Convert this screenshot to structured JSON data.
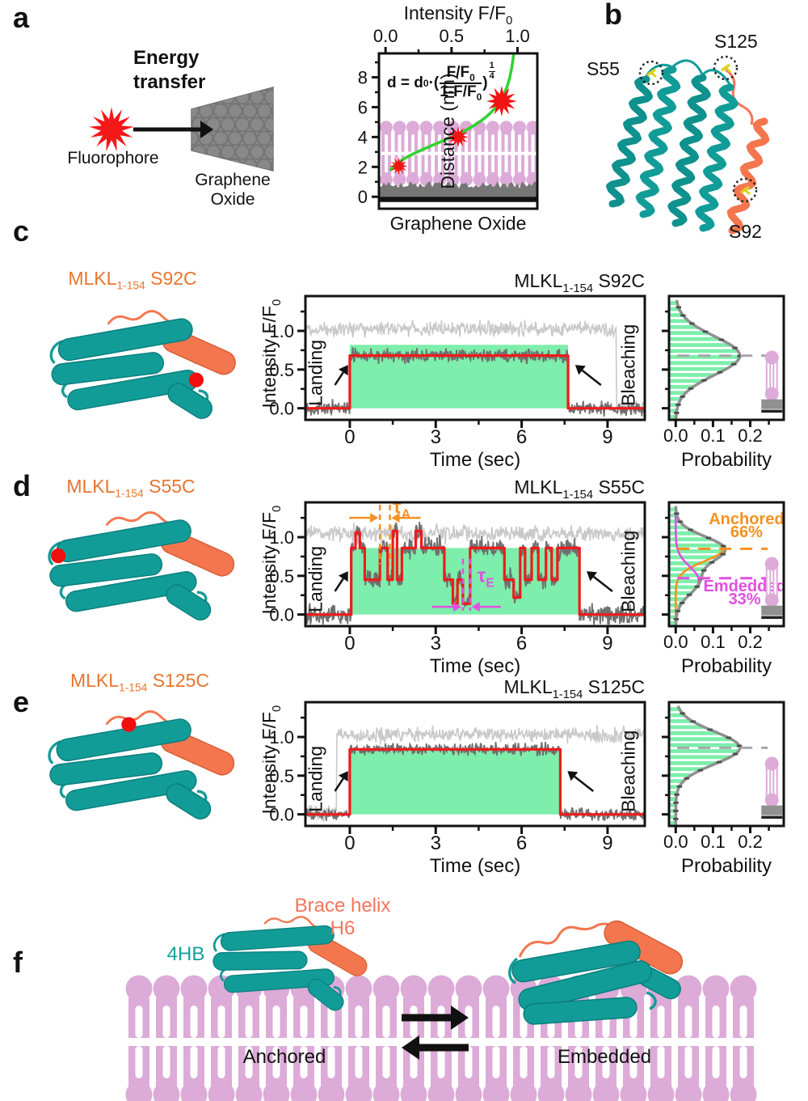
{
  "panel_letters": {
    "a": "a",
    "b": "b",
    "c": "c",
    "d": "d",
    "e": "e",
    "f": "f"
  },
  "panel_a": {
    "energy_line1": "Energy",
    "energy_line2": "transfer",
    "fluorophore_label": "Fluorophore",
    "go_line1": "Graphene",
    "go_line2": "Oxide"
  },
  "panel_b": {
    "s55": "S55",
    "s125": "S125",
    "s92": "S92"
  },
  "variants": {
    "c": {
      "prefix": "MLKL",
      "sub": "1-154",
      "suffix": " S92C"
    },
    "d": {
      "prefix": "MLKL",
      "sub": "1-154",
      "suffix": " S55C"
    },
    "e": {
      "prefix": "MLKL",
      "sub": "1-154",
      "suffix": " S125C"
    }
  },
  "panel_f": {
    "fourhb": "4HB",
    "brace_line1": "Brace helix",
    "brace_line2": "H6",
    "anchored": "Anchored",
    "embedded": "Embedded"
  },
  "colors": {
    "teal": "#129c98",
    "salmon": "#f4764f",
    "orange_text": "#e8742e",
    "anchored_orange": "#f59120",
    "embedded_magenta": "#e24fe2",
    "lipid_pink": "#dcabd8",
    "green_fill": "#7deeab",
    "green_curve": "#2fd32f",
    "fit_red": "#ee1b1b",
    "light_trace": "#c9c9c9",
    "dark_trace": "#6f6f6f",
    "envelope_gray": "#8f8f8f"
  },
  "chart_data": [
    {
      "id": "calibration",
      "type": "line",
      "title_main": "Intensity F/F",
      "title_sub": "0",
      "top_ticks": [
        0,
        0.5,
        1
      ],
      "top_tick_labels": [
        "0.0",
        "0.5",
        "1.0"
      ],
      "ylabel": "Distance (nm)",
      "y_ticks": [
        0,
        2,
        4,
        6,
        8
      ],
      "y_tick_labels": [
        "0",
        "2",
        "4",
        "6",
        "8"
      ],
      "y_minor": [
        1,
        3,
        5,
        7,
        9
      ],
      "xlim": [
        -0.05,
        1.15
      ],
      "ylim": [
        -0.8,
        9.6
      ],
      "d0_nm": 4,
      "curve_F_range": [
        0.035,
        0.995
      ],
      "stars_F_d": [
        [
          0.1,
          2.05
        ],
        [
          0.55,
          4.0
        ],
        [
          0.88,
          6.4
        ]
      ],
      "membrane_nm": [
        1.15,
        4.65
      ],
      "go_top_nm": 0.8,
      "bottom_label": "Graphene Oxide",
      "formula": {
        "pre": "d = d",
        "pre_sub": "0",
        "open": "·(",
        "num": "F/F",
        "num_sub": "0",
        "den": "1-F/F",
        "den_sub": "0",
        "close": ")",
        "exp_num": "1",
        "exp_den": "4"
      }
    },
    {
      "id": "trace_s92c",
      "type": "line",
      "variant": "c",
      "xlabel": "Time (sec)",
      "ylabel_main": "Intensity F/F",
      "ylabel_sub": "0",
      "x_ticks": [
        0,
        3,
        6,
        9
      ],
      "x_tick_labels": [
        "0",
        "3",
        "6",
        "9"
      ],
      "x_minor": [
        1.5,
        4.5,
        7.5
      ],
      "y_ticks": [
        0,
        0.5,
        1
      ],
      "y_tick_labels": [
        "0.0",
        "0.5",
        "1.0"
      ],
      "y_minor": [
        0.25,
        0.75,
        1.25
      ],
      "xlim": [
        -1.55,
        10.3
      ],
      "ylim": [
        -0.15,
        1.45
      ],
      "landing_label": "Landing",
      "bleaching_label": "Bleaching",
      "landing_t": 0,
      "bleach_t": 7.62,
      "fit_level": 0.68,
      "fit_segments": [
        [
          -1.55,
          0
        ],
        [
          0,
          0.68
        ],
        [
          7.62,
          0
        ]
      ],
      "ref_segments": [
        [
          -1.55,
          1.03
        ],
        [
          9.3,
          0.02
        ]
      ],
      "green_top": 0.82,
      "seed": 11,
      "dark_sd": 0.05,
      "light_sd": 0.055
    },
    {
      "id": "hist_s92c",
      "type": "area",
      "xlabel": "Probability",
      "x_ticks": [
        0,
        0.1,
        0.2
      ],
      "x_tick_labels": [
        "0.0",
        "0.1",
        "0.2"
      ],
      "x_minor": [
        0.05,
        0.15,
        0.25
      ],
      "y_ticks": [
        0,
        0.5,
        1
      ],
      "y_minor": [
        0.25,
        0.75,
        1.25
      ],
      "xlim": [
        -0.018,
        0.29
      ],
      "ylim": [
        -0.15,
        1.45
      ],
      "components": [
        {
          "mean": 0.68,
          "sd": 0.25,
          "peak": 0.172,
          "color": "#8f8f8f",
          "dash_level": 0.68,
          "dash_color": "#a8a8a8"
        }
      ],
      "envelope_color": "#8f8f8f",
      "fill": "#7deeab"
    },
    {
      "id": "trace_s55c",
      "type": "line",
      "variant": "d",
      "xlabel": "Time (sec)",
      "ylabel_main": "Intensity F/F",
      "ylabel_sub": "0",
      "x_ticks": [
        0,
        3,
        6,
        9
      ],
      "x_tick_labels": [
        "0",
        "3",
        "6",
        "9"
      ],
      "x_minor": [
        1.5,
        4.5,
        7.5
      ],
      "y_ticks": [
        0,
        0.5,
        1
      ],
      "y_tick_labels": [
        "0.0",
        "0.5",
        "1.0"
      ],
      "y_minor": [
        0.25,
        0.75,
        1.25
      ],
      "xlim": [
        -1.55,
        10.3
      ],
      "ylim": [
        -0.15,
        1.45
      ],
      "landing_label": "Landing",
      "bleaching_label": "Bleaching",
      "landing_t": 0,
      "bleach_t": 8.02,
      "fit_level": 0.86,
      "fit_segments": [
        [
          -1.55,
          0
        ],
        [
          0.05,
          0.86
        ],
        [
          0.2,
          1.06
        ],
        [
          0.35,
          0.86
        ],
        [
          0.52,
          0.45
        ],
        [
          1.05,
          0.86
        ],
        [
          1.32,
          0.45
        ],
        [
          1.5,
          1.08
        ],
        [
          1.65,
          0.45
        ],
        [
          1.82,
          0.86
        ],
        [
          2.3,
          1.08
        ],
        [
          2.5,
          0.86
        ],
        [
          3.3,
          0.45
        ],
        [
          3.6,
          0.14
        ],
        [
          3.76,
          0.45
        ],
        [
          3.95,
          0.14
        ],
        [
          4.2,
          0.86
        ],
        [
          5.4,
          0.45
        ],
        [
          5.72,
          0.22
        ],
        [
          5.95,
          0.86
        ],
        [
          6.12,
          0.45
        ],
        [
          6.35,
          0.86
        ],
        [
          6.58,
          0.45
        ],
        [
          6.85,
          0.86
        ],
        [
          7.05,
          0.45
        ],
        [
          7.25,
          0.86
        ],
        [
          8.02,
          0
        ]
      ],
      "ref_segments": [
        [
          -1.55,
          1.05
        ]
      ],
      "green_top": 0.86,
      "seed": 23,
      "dark_sd": 0.075,
      "light_sd": 0.06,
      "tau": [
        {
          "sym": "τ",
          "sub": "A",
          "color": "#f59120",
          "t1": 1.05,
          "t2": 1.4,
          "line_top": 1.42,
          "line_bot": 0.65,
          "arrow_y": 1.25,
          "label_t": 1.5,
          "label_v": 1.31
        },
        {
          "sym": "τ",
          "sub": "E",
          "color": "#e24fe2",
          "t1": 3.95,
          "t2": 4.2,
          "line_top": 0.72,
          "line_bot": 0.05,
          "arrow_y": 0.1,
          "label_t": 4.45,
          "label_v": 0.42
        }
      ]
    },
    {
      "id": "hist_s55c",
      "type": "area",
      "xlabel": "Probability",
      "x_ticks": [
        0,
        0.1,
        0.2
      ],
      "x_tick_labels": [
        "0.0",
        "0.1",
        "0.2"
      ],
      "x_minor": [
        0.05,
        0.15,
        0.25
      ],
      "y_ticks": [
        0,
        0.5,
        1
      ],
      "y_minor": [
        0.25,
        0.75,
        1.25
      ],
      "xlim": [
        -0.018,
        0.29
      ],
      "ylim": [
        -0.15,
        1.45
      ],
      "components": [
        {
          "name": "Anchored",
          "pct": "66%",
          "mean": 0.85,
          "sd": 0.16,
          "peak": 0.128,
          "color": "#f59120",
          "dash_level": 0.85,
          "dash_color": "#f59120",
          "label_p": 0.19,
          "label_v": 1.17
        },
        {
          "name": "Emdedded",
          "pct": "33%",
          "mean": 0.44,
          "sd": 0.18,
          "peak": 0.062,
          "color": "#e24fe2",
          "dash_level": 0.47,
          "dash_color": "#e24fe2",
          "label_p": 0.185,
          "label_v": 0.3
        }
      ],
      "envelope_color": "#8f8f8f",
      "fill": "#7deeab"
    },
    {
      "id": "trace_s125c",
      "type": "line",
      "variant": "e",
      "xlabel": "Time (sec)",
      "ylabel_main": "Intensity F/F",
      "ylabel_sub": "0",
      "x_ticks": [
        0,
        3,
        6,
        9
      ],
      "x_tick_labels": [
        "0",
        "3",
        "6",
        "9"
      ],
      "x_minor": [
        1.5,
        4.5,
        7.5
      ],
      "y_ticks": [
        0,
        0.5,
        1
      ],
      "y_tick_labels": [
        "0.0",
        "0.5",
        "1.0"
      ],
      "y_minor": [
        0.25,
        0.75,
        1.25
      ],
      "xlim": [
        -1.55,
        10.3
      ],
      "ylim": [
        -0.15,
        1.45
      ],
      "landing_label": "Landing",
      "bleaching_label": "Bleaching",
      "landing_t": 0,
      "bleach_t": 7.35,
      "fit_level": 0.84,
      "fit_segments": [
        [
          -1.55,
          0
        ],
        [
          0,
          0.84
        ],
        [
          7.35,
          0
        ]
      ],
      "ref_segments": [
        [
          -1.55,
          0.02
        ],
        [
          -0.45,
          1.03
        ]
      ],
      "green_top": 0.84,
      "seed": 37,
      "dark_sd": 0.045,
      "light_sd": 0.055
    },
    {
      "id": "hist_s125c",
      "type": "area",
      "xlabel": "Probability",
      "x_ticks": [
        0,
        0.1,
        0.2
      ],
      "x_tick_labels": [
        "0.0",
        "0.1",
        "0.2"
      ],
      "x_minor": [
        0.05,
        0.15,
        0.25
      ],
      "y_ticks": [
        0,
        0.5,
        1
      ],
      "y_minor": [
        0.25,
        0.75,
        1.25
      ],
      "xlim": [
        -0.018,
        0.29
      ],
      "ylim": [
        -0.15,
        1.45
      ],
      "components": [
        {
          "mean": 0.86,
          "sd": 0.21,
          "peak": 0.172,
          "color": "#8f8f8f",
          "dash_level": 0.86,
          "dash_color": "#a8a8a8"
        }
      ],
      "envelope_color": "#8f8f8f",
      "fill": "#7deeab"
    }
  ]
}
